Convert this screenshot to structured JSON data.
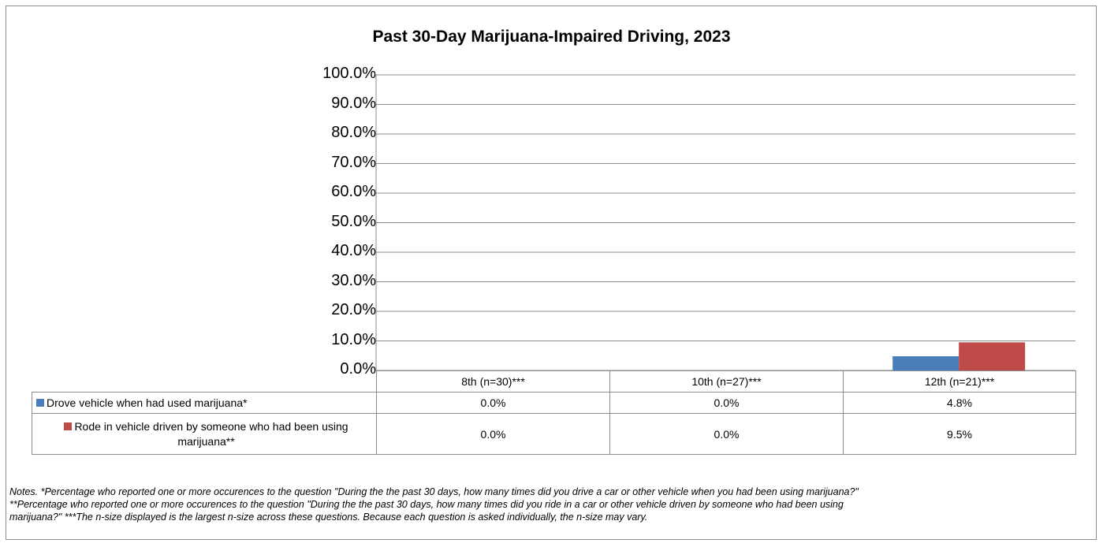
{
  "chart_data": {
    "type": "bar",
    "title": "Past 30-Day Marijuana-Impaired Driving, 2023",
    "categories": [
      "8th (n=30)***",
      "10th (n=27)***",
      "12th (n=21)***"
    ],
    "series": [
      {
        "name": "Drove vehicle when had used marijuana*",
        "color": "#4a7ebb",
        "values": [
          0.0,
          0.0,
          4.8
        ],
        "labels": [
          "0.0%",
          "0.0%",
          "4.8%"
        ]
      },
      {
        "name": "Rode in vehicle driven by someone who had been using marijuana**",
        "color": "#be4b48",
        "values": [
          0.0,
          0.0,
          9.5
        ],
        "labels": [
          "0.0%",
          "0.0%",
          "9.5%"
        ]
      }
    ],
    "ylim": [
      0,
      100
    ],
    "yticks": [
      "0.0%",
      "10.0%",
      "20.0%",
      "30.0%",
      "40.0%",
      "50.0%",
      "60.0%",
      "70.0%",
      "80.0%",
      "90.0%",
      "100.0%"
    ],
    "grid": true,
    "legend": "data table"
  },
  "notes": {
    "line1": "Notes. *Percentage who reported one or more occurences to the question \"During the the past 30 days, how many times did you drive a car or other vehicle when you had been using marijuana?\"",
    "line2": "**Percentage who reported one or more occurences to the question \"During the the past 30 days, how many times did you ride in a car or other vehicle driven by someone who had been using",
    "line3": "marijuana?\"  ***The n-size displayed is the largest n-size across these questions. Because each question is asked individually, the n-size may vary."
  }
}
